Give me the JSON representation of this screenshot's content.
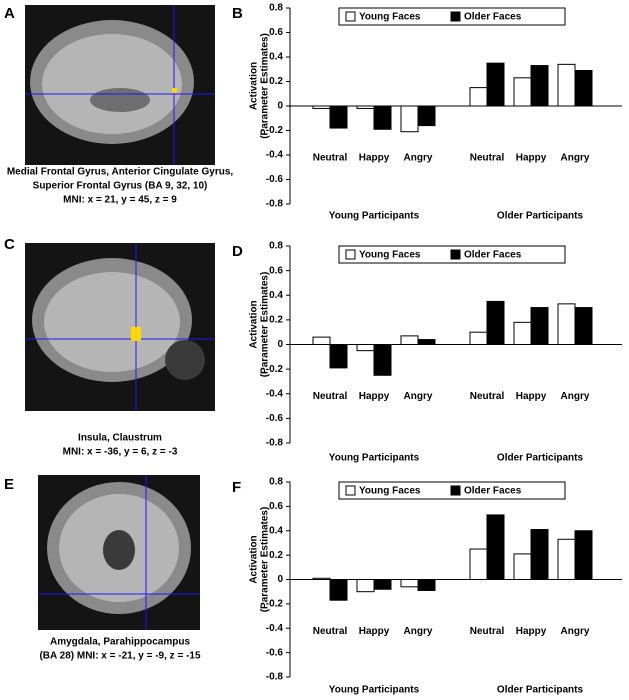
{
  "images": [
    {
      "panel_label": "A",
      "caption": [
        "Medial Frontal Gyrus, Anterior Cingulate Gyrus,",
        "Superior Frontal Gyrus (BA 9, 32, 10)",
        "MNI: x = 21, y = 45, z = 9"
      ]
    },
    {
      "panel_label": "C",
      "caption": [
        "Insula, Claustrum",
        "MNI: x = -36, y = 6, z = -3"
      ]
    },
    {
      "panel_label": "E",
      "caption": [
        "Amygdala, Parahippocampus",
        "(BA 28) MNI: x = -21, y = -9, z = -15"
      ]
    }
  ],
  "chart_data": [
    {
      "type": "bar",
      "panel_label": "B",
      "ylabel": [
        "Activation",
        "(Parameter Estimates)"
      ],
      "categories": [
        "Neutral",
        "Happy",
        "Angry",
        "Neutral",
        "Happy",
        "Angry"
      ],
      "groups": [
        "Young Participants",
        "Older Participants"
      ],
      "series": [
        {
          "name": "Young Faces",
          "color": "#ffffff",
          "values": [
            -0.02,
            -0.02,
            -0.21,
            0.15,
            0.23,
            0.34
          ]
        },
        {
          "name": "Older Faces",
          "color": "#000000",
          "values": [
            -0.18,
            -0.19,
            -0.16,
            0.35,
            0.33,
            0.29
          ]
        }
      ],
      "ylim": [
        -0.8,
        0.8
      ],
      "yticks": [
        -0.8,
        -0.6,
        -0.4,
        -0.2,
        0,
        0.2,
        0.4,
        0.6,
        0.8
      ]
    },
    {
      "type": "bar",
      "panel_label": "D",
      "ylabel": [
        "Activation",
        "(Parameter Estimates)"
      ],
      "categories": [
        "Neutral",
        "Happy",
        "Angry",
        "Neutral",
        "Happy",
        "Angry"
      ],
      "groups": [
        "Young Participants",
        "Older Participants"
      ],
      "series": [
        {
          "name": "Young Faces",
          "color": "#ffffff",
          "values": [
            0.06,
            -0.05,
            0.07,
            0.1,
            0.18,
            0.33
          ]
        },
        {
          "name": "Older Faces",
          "color": "#000000",
          "values": [
            -0.19,
            -0.25,
            0.04,
            0.35,
            0.3,
            0.3
          ]
        }
      ],
      "ylim": [
        -0.8,
        0.8
      ],
      "yticks": [
        -0.8,
        -0.6,
        -0.4,
        -0.2,
        0,
        0.2,
        0.4,
        0.6,
        0.8
      ]
    },
    {
      "type": "bar",
      "panel_label": "F",
      "ylabel": [
        "Activation",
        "(Parameter Estimates)"
      ],
      "categories": [
        "Neutral",
        "Happy",
        "Angry",
        "Neutral",
        "Happy",
        "Angry"
      ],
      "groups": [
        "Young Participants",
        "Older Participants"
      ],
      "series": [
        {
          "name": "Young Faces",
          "color": "#ffffff",
          "values": [
            0.01,
            -0.1,
            -0.06,
            0.25,
            0.21,
            0.33
          ]
        },
        {
          "name": "Older Faces",
          "color": "#000000",
          "values": [
            -0.17,
            -0.08,
            -0.09,
            0.53,
            0.41,
            0.4
          ]
        }
      ],
      "ylim": [
        -0.8,
        0.8
      ],
      "yticks": [
        -0.8,
        -0.6,
        -0.4,
        -0.2,
        0,
        0.2,
        0.4,
        0.6,
        0.8
      ]
    }
  ]
}
